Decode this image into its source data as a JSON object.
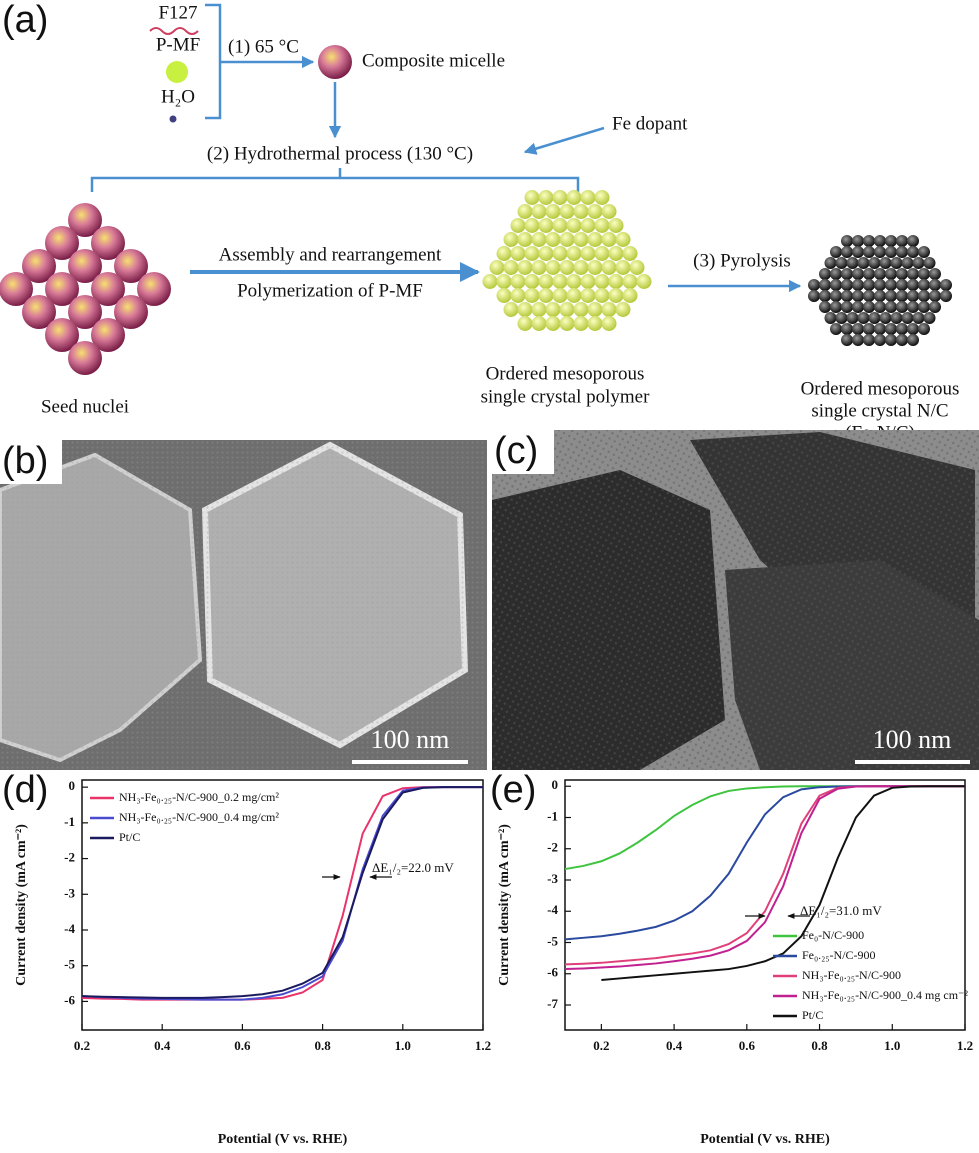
{
  "panel_a": {
    "label": "(a)",
    "reagents": [
      "F127",
      "P-MF",
      "H₂O"
    ],
    "step1": "(1) 65 °C",
    "micelle": "Composite micelle",
    "step2": "(2) Hydrothermal process (130 °C)",
    "dopant": "Fe dopant",
    "seed": "Seed nuclei",
    "arrow_top": "Assembly and rearrangement",
    "arrow_bottom": "Polymerization of P-MF",
    "polymer": [
      "Ordered mesoporous",
      "single crystal polymer"
    ],
    "step3": "(3) Pyrolysis",
    "product": [
      "Ordered mesoporous",
      "single crystal N/C",
      "(Fe-N/C)"
    ]
  },
  "panel_b": {
    "label": "(b)",
    "scale_bar": "100 nm"
  },
  "panel_c": {
    "label": "(c)",
    "scale_bar": "100 nm"
  },
  "chart_data": [
    {
      "type": "line",
      "label": "(d)",
      "xlabel": "Potential (V vs. RHE)",
      "ylabel": "Current density (mA cm⁻²)",
      "annotation": "ΔE₁/₂=22.0 mV",
      "x": [
        0.2,
        0.25,
        0.3,
        0.35,
        0.4,
        0.45,
        0.5,
        0.55,
        0.6,
        0.65,
        0.7,
        0.75,
        0.8,
        0.85,
        0.9,
        0.95,
        1.0,
        1.05,
        1.1,
        1.15,
        1.2
      ],
      "series": [
        {
          "name": "NH₃-Fe₀.₂₅-N/C-900_0.2 mg/cm²",
          "color": "#e8336b",
          "values": [
            -5.9,
            -5.92,
            -5.93,
            -5.95,
            -5.95,
            -5.95,
            -5.95,
            -5.95,
            -5.95,
            -5.93,
            -5.9,
            -5.75,
            -5.4,
            -3.6,
            -1.3,
            -0.25,
            -0.03,
            0,
            0,
            0,
            0
          ]
        },
        {
          "name": "NH₃-Fe₀.₂₅-N/C-900_0.4 mg/cm²",
          "color": "#4b4bd0",
          "values": [
            -5.85,
            -5.88,
            -5.9,
            -5.92,
            -5.93,
            -5.94,
            -5.95,
            -5.95,
            -5.95,
            -5.9,
            -5.8,
            -5.6,
            -5.3,
            -4.3,
            -2.3,
            -0.8,
            -0.1,
            -0.01,
            0,
            0,
            0
          ]
        },
        {
          "name": "Pt/C",
          "color": "#1a1a5e",
          "values": [
            -5.85,
            -5.87,
            -5.88,
            -5.89,
            -5.9,
            -5.9,
            -5.9,
            -5.88,
            -5.85,
            -5.8,
            -5.7,
            -5.5,
            -5.2,
            -4.2,
            -2.4,
            -0.9,
            -0.15,
            -0.02,
            0,
            0,
            0
          ]
        }
      ],
      "xlim": [
        0.2,
        1.2
      ],
      "xticks": [
        0.2,
        0.4,
        0.6,
        0.8,
        {
          "value": 1,
          "label": "1.0"
        },
        1.2
      ],
      "ylim": [
        -6.8,
        0.2
      ],
      "yticks": [
        0,
        -1,
        -2,
        -3,
        -4,
        -5,
        -6
      ],
      "legend": "upper left"
    },
    {
      "type": "line",
      "label": "(e)",
      "xlabel": "Potential (V vs. RHE)",
      "ylabel": "Current density (mA cm⁻²)",
      "annotation": "ΔE₁/₂=31.0 mV",
      "x": [
        0.1,
        0.15,
        0.2,
        0.25,
        0.3,
        0.35,
        0.4,
        0.45,
        0.5,
        0.55,
        0.6,
        0.65,
        0.7,
        0.75,
        0.8,
        0.85,
        0.9,
        0.95,
        1.0,
        1.05,
        1.1,
        1.15,
        1.2
      ],
      "series": [
        {
          "name": "Fe₀-N/C-900",
          "color": "#3ec43e",
          "values": [
            -2.65,
            -2.55,
            -2.4,
            -2.15,
            -1.8,
            -1.4,
            -0.95,
            -0.6,
            -0.32,
            -0.15,
            -0.07,
            -0.03,
            -0.01,
            0,
            0,
            0,
            0,
            0,
            0,
            0,
            0,
            0,
            0
          ]
        },
        {
          "name": "Fe₀.₂₅-N/C-900",
          "color": "#2a4aa0",
          "values": [
            -4.9,
            -4.85,
            -4.8,
            -4.72,
            -4.62,
            -4.5,
            -4.3,
            -4.0,
            -3.5,
            -2.8,
            -1.8,
            -0.9,
            -0.35,
            -0.1,
            -0.03,
            -0.01,
            0,
            0,
            0,
            0,
            0,
            0,
            0
          ]
        },
        {
          "name": "NH₃-Fe₀.₂₅-N/C-900",
          "color": "#e0407a",
          "values": [
            -5.7,
            -5.68,
            -5.65,
            -5.6,
            -5.55,
            -5.5,
            -5.42,
            -5.35,
            -5.25,
            -5.05,
            -4.7,
            -4.0,
            -2.8,
            -1.2,
            -0.3,
            -0.05,
            -0.01,
            0,
            0,
            0,
            0,
            0,
            0
          ]
        },
        {
          "name": "NH₃-Fe₀.₂₅-N/C-900_0.4 mg cm⁻²",
          "color": "#c02090",
          "values": [
            -5.85,
            -5.83,
            -5.8,
            -5.77,
            -5.72,
            -5.67,
            -5.6,
            -5.52,
            -5.42,
            -5.25,
            -4.95,
            -4.35,
            -3.2,
            -1.5,
            -0.4,
            -0.08,
            -0.01,
            0,
            0,
            0,
            0,
            0,
            0
          ]
        },
        {
          "name": "Pt/C",
          "color": "#111111",
          "values": [
            null,
            null,
            -6.2,
            -6.15,
            -6.1,
            -6.05,
            -6.0,
            -5.95,
            -5.9,
            -5.85,
            -5.75,
            -5.6,
            -5.35,
            -4.8,
            -3.8,
            -2.3,
            -1.0,
            -0.3,
            -0.05,
            -0.01,
            0,
            0,
            0
          ]
        }
      ],
      "xlim": [
        0.1,
        1.2
      ],
      "xticks": [
        0.2,
        0.4,
        0.6,
        0.8,
        {
          "value": 1,
          "label": "1.0"
        },
        1.2
      ],
      "ylim": [
        -7.8,
        0.2
      ],
      "yticks": [
        0,
        -1,
        -2,
        -3,
        -4,
        -5,
        -6,
        -7
      ],
      "legend": "lower right"
    }
  ]
}
